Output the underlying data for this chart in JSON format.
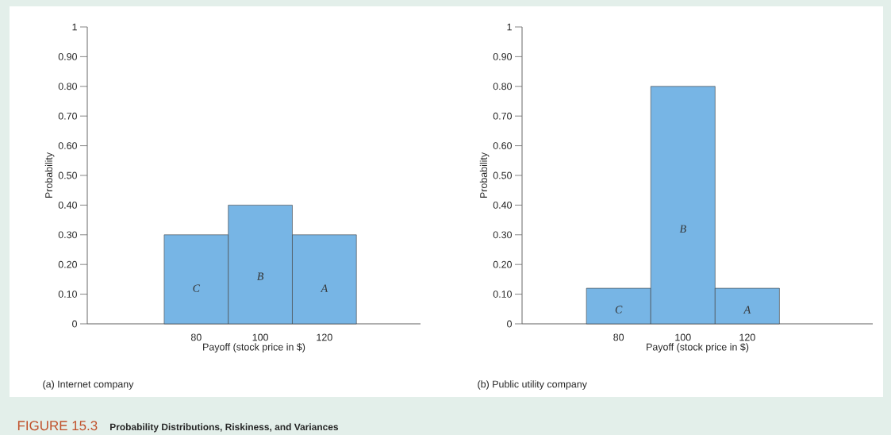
{
  "chart_data": [
    {
      "type": "bar",
      "subtitle": "(a) Internet company",
      "xlabel": "Payoff (stock price in $)",
      "ylabel": "Probability",
      "x": [
        80,
        100,
        120
      ],
      "values": [
        0.3,
        0.4,
        0.3
      ],
      "color": "#77b5e5",
      "xlim": [
        46,
        150
      ],
      "xticks": [
        80,
        100,
        120
      ],
      "ylim": [
        0,
        1
      ],
      "yticks": [
        0,
        {
          "value": 0.1,
          "label": "0.10"
        },
        {
          "value": 0.2,
          "label": "0.20"
        },
        {
          "value": 0.3,
          "label": "0.30"
        },
        {
          "value": 0.4,
          "label": "0.40"
        },
        {
          "value": 0.5,
          "label": "0.50"
        },
        {
          "value": 0.6,
          "label": "0.60"
        },
        {
          "value": 0.7,
          "label": "0.70"
        },
        {
          "value": 0.8,
          "label": "0.80"
        },
        {
          "value": 0.9,
          "label": "0.90"
        },
        1
      ],
      "value_labels": [
        "C",
        "B",
        "A"
      ],
      "annotations": [
        "FIGURE 15.3",
        "Probability Distributions, Riskiness, and Variances"
      ]
    },
    {
      "type": "bar",
      "subtitle": "(b) Public utility company",
      "xlabel": "Payoff (stock price in $)",
      "ylabel": "Probability",
      "x": [
        80,
        100,
        120
      ],
      "values": [
        0.12,
        0.8,
        0.12
      ],
      "color": "#77b5e5",
      "xlim": [
        50,
        159
      ],
      "xticks": [
        80,
        100,
        120
      ],
      "ylim": [
        0,
        1
      ],
      "yticks": [
        0,
        {
          "value": 0.1,
          "label": "0.10"
        },
        {
          "value": 0.2,
          "label": "0.20"
        },
        {
          "value": 0.3,
          "label": "0.30"
        },
        {
          "value": 0.4,
          "label": "0.40"
        },
        {
          "value": 0.5,
          "label": "0.50"
        },
        {
          "value": 0.6,
          "label": "0.60"
        },
        {
          "value": 0.7,
          "label": "0.70"
        },
        {
          "value": 0.8,
          "label": "0.80"
        },
        {
          "value": 0.9,
          "label": "0.90"
        },
        1
      ],
      "value_labels": [
        "C",
        "B",
        "A"
      ]
    }
  ]
}
